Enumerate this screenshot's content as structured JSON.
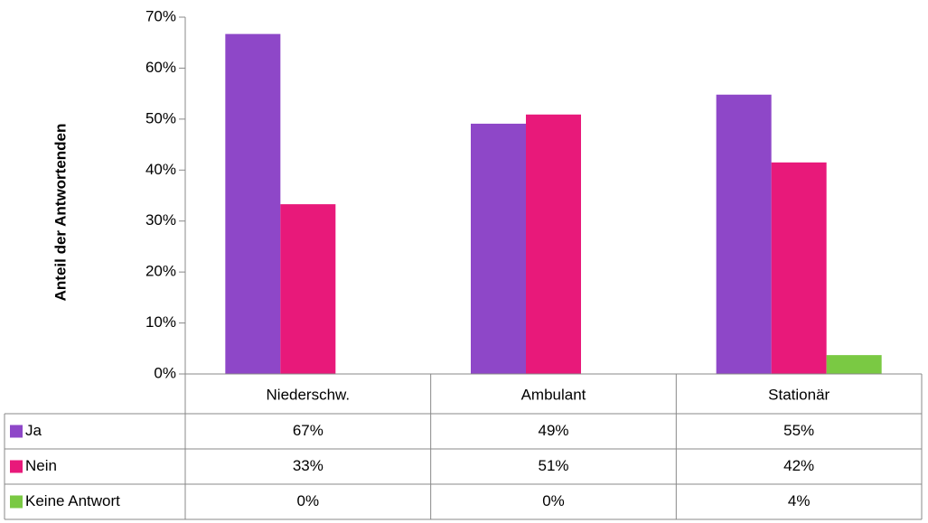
{
  "chart_data": {
    "type": "bar",
    "y_label": "Anteil der Antwortenden",
    "categories": [
      "Niederschw.",
      "Ambulant",
      "Stationär"
    ],
    "series": [
      {
        "name": "Ja",
        "color": "#8e47c8",
        "values": [
          66.7,
          49.1,
          54.8
        ],
        "value_labels": [
          "67%",
          "49%",
          "55%"
        ]
      },
      {
        "name": "Nein",
        "color": "#e8197a",
        "values": [
          33.3,
          50.9,
          41.5
        ],
        "value_labels": [
          "33%",
          "51%",
          "42%"
        ]
      },
      {
        "name": "Keine Antwort",
        "color": "#7ac943",
        "values": [
          0,
          0,
          3.7
        ],
        "value_labels": [
          "0%",
          "0%",
          "4%"
        ]
      }
    ],
    "ylim": [
      0,
      70
    ],
    "yticks": [
      {
        "value": 0,
        "label": "0%"
      },
      {
        "value": 10,
        "label": "10%"
      },
      {
        "value": 20,
        "label": "20%"
      },
      {
        "value": 30,
        "label": "30%"
      },
      {
        "value": 40,
        "label": "40%"
      },
      {
        "value": 50,
        "label": "50%"
      },
      {
        "value": 60,
        "label": "60%"
      },
      {
        "value": 70,
        "label": "70%"
      }
    ],
    "grid": false
  }
}
